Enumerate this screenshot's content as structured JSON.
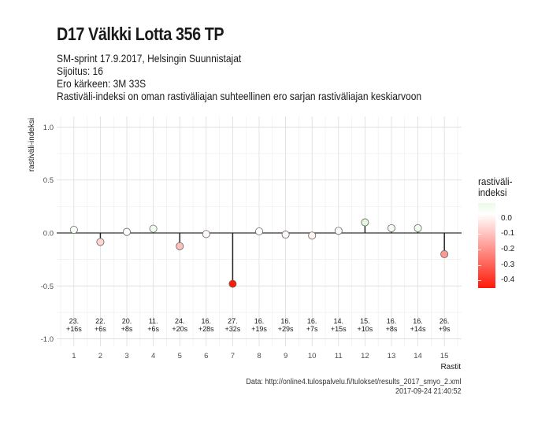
{
  "header": {
    "title": "D17 Välkki Lotta 356 TP",
    "subtitle_lines": [
      "SM-sprint 17.9.2017, Helsingin Suunnistajat",
      "Sijoitus: 16",
      "Ero kärkeen: 3M 33S",
      "Rastiväli-indeksi on oman rastiväliajan suhteellinen ero sarjan rastiväliajan keskiarvoon"
    ]
  },
  "caption": {
    "source": "Data: http://online4.tulospalvelu.fi/tulokset/results_2017_smyo_2.xml",
    "timestamp": "2017-09-24 21:40:52"
  },
  "legend": {
    "title_line1": "rastiväli-",
    "title_line2": "indeksi",
    "labels": [
      "0.0",
      "-0.1",
      "-0.2",
      "-0.3",
      "-0.4"
    ],
    "colors": {
      "positive": "#eafbe6",
      "zero": "#ffffff",
      "negative": "#ff1a0a"
    }
  },
  "chart_data": {
    "type": "scatter",
    "subtype": "lollipop",
    "title": "D17 Välkki Lotta 356 TP",
    "xlabel": "Rastit",
    "ylabel": "rastiväli-indeksi",
    "x": [
      1,
      2,
      3,
      4,
      5,
      6,
      7,
      8,
      9,
      10,
      11,
      12,
      13,
      14,
      15
    ],
    "y": [
      0.03,
      -0.085,
      0.01,
      0.04,
      -0.125,
      -0.01,
      -0.48,
      0.015,
      -0.015,
      -0.025,
      0.02,
      0.1,
      0.045,
      0.045,
      -0.2
    ],
    "annotations": [
      {
        "rank": "23.",
        "behind": "+16s"
      },
      {
        "rank": "22.",
        "behind": "+6s"
      },
      {
        "rank": "20.",
        "behind": "+8s"
      },
      {
        "rank": "11.",
        "behind": "+6s"
      },
      {
        "rank": "24.",
        "behind": "+20s"
      },
      {
        "rank": "16.",
        "behind": "+28s"
      },
      {
        "rank": "27.",
        "behind": "+32s"
      },
      {
        "rank": "16.",
        "behind": "+19s"
      },
      {
        "rank": "16.",
        "behind": "+29s"
      },
      {
        "rank": "16.",
        "behind": "+7s"
      },
      {
        "rank": "14.",
        "behind": "+15s"
      },
      {
        "rank": "15.",
        "behind": "+10s"
      },
      {
        "rank": "16.",
        "behind": "+8s"
      },
      {
        "rank": "16.",
        "behind": "+14s"
      },
      {
        "rank": "26.",
        "behind": "+9s"
      }
    ],
    "annotation_y": -0.9,
    "xlim": [
      0.35,
      15.65
    ],
    "ylim": [
      -1.07,
      1.1
    ],
    "yticks": [
      -1.0,
      -0.5,
      0.0,
      0.5,
      1.0
    ],
    "ytick_labels": [
      "-1.0",
      "-0.5",
      "0.0",
      "0.5",
      "1.0"
    ],
    "xtick_labels": [
      "1",
      "2",
      "3",
      "4",
      "5",
      "6",
      "7",
      "8",
      "9",
      "10",
      "11",
      "12",
      "13",
      "14",
      "15"
    ],
    "grid": true,
    "legend": "right",
    "color_scale": {
      "min": -0.45,
      "max": 0.1,
      "mid": 0.0
    }
  }
}
